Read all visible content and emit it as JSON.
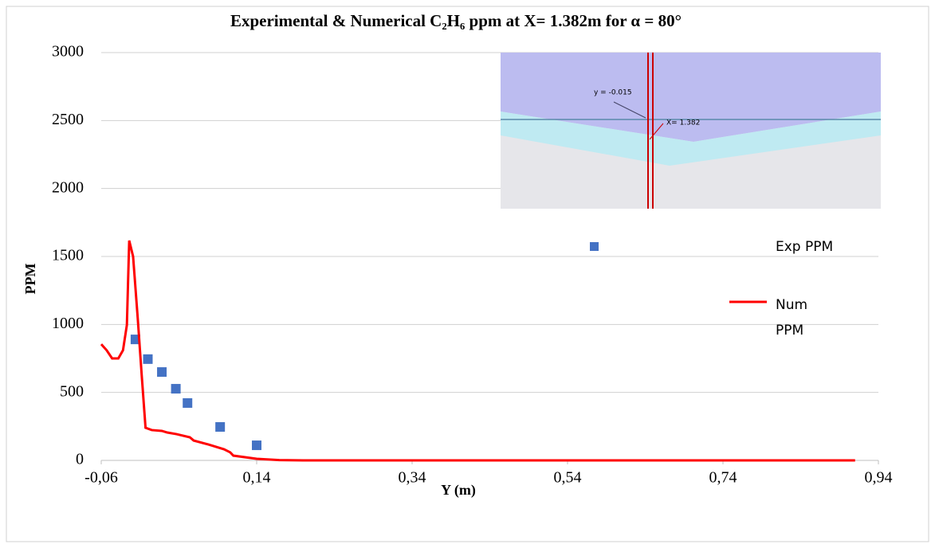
{
  "chart_data": {
    "type": "scatter-line",
    "title": "Experimental & Numerical C₂H₆ ppm at X= 1.382m for α = 80°",
    "x_label": "Y (m)",
    "y_label": "PPM",
    "annotations": [
      "y = -0.015",
      "X= 1.382"
    ],
    "xlim": [
      -0.06,
      0.94
    ],
    "ylim": [
      0,
      3000
    ],
    "xticks": [
      {
        "value": -0.06,
        "label": "-0,06"
      },
      {
        "value": 0.14,
        "label": "0,14"
      },
      {
        "value": 0.34,
        "label": "0,34"
      },
      {
        "value": 0.54,
        "label": "0,54"
      },
      {
        "value": 0.74,
        "label": "0,74"
      },
      {
        "value": 0.94,
        "label": "0,94"
      }
    ],
    "yticks": [
      0,
      500,
      1000,
      1500,
      2000,
      2500,
      3000
    ],
    "grid": true,
    "series": [
      {
        "name": "Exp PPM",
        "type": "scatter",
        "color": "#4472c4",
        "x": [
          -0.016,
          0.0,
          0.018,
          0.036,
          0.051,
          0.093,
          0.14
        ],
        "values": [
          890,
          745,
          650,
          527,
          422,
          246,
          111
        ]
      },
      {
        "name": "Num PPM",
        "type": "line",
        "color": "#ff0000",
        "x": [
          -0.06,
          -0.053,
          -0.046,
          -0.038,
          -0.032,
          -0.027,
          -0.024,
          -0.019,
          -0.013,
          -0.008,
          -0.003,
          0.005,
          0.018,
          0.025,
          0.037,
          0.054,
          0.059,
          0.078,
          0.098,
          0.106,
          0.11,
          0.14,
          0.169,
          0.2,
          0.91
        ],
        "values": [
          855,
          810,
          750,
          750,
          810,
          996,
          1617,
          1500,
          1043,
          633,
          240,
          223,
          217,
          205,
          193,
          170,
          146,
          117,
          82,
          59,
          35,
          12,
          2,
          0,
          0
        ]
      }
    ]
  }
}
